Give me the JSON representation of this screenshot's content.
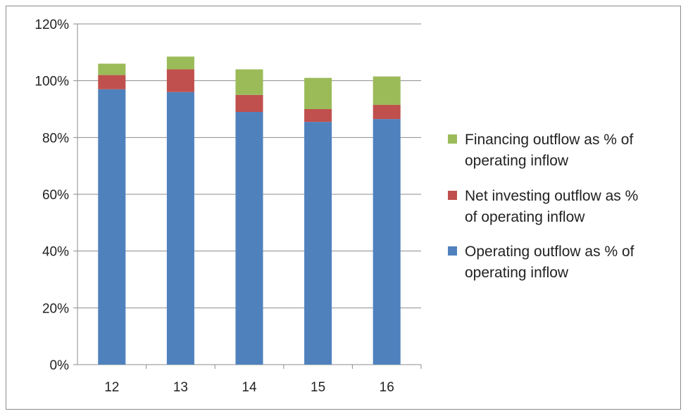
{
  "chart_data": {
    "type": "bar",
    "stacked": true,
    "categories": [
      "12",
      "13",
      "14",
      "15",
      "16"
    ],
    "series": [
      {
        "name": "Operating outflow as % of operating inflow",
        "color": "#4F81BD",
        "values": [
          97,
          96,
          89,
          85.5,
          86.5
        ]
      },
      {
        "name": "Net investing outflow as % of operating inflow",
        "color": "#C0504D",
        "values": [
          5,
          8,
          6,
          4.5,
          5
        ]
      },
      {
        "name": "Financing outflow as % of operating inflow",
        "color": "#9BBB59",
        "values": [
          4,
          4.5,
          9,
          11,
          10
        ]
      }
    ],
    "ylim": [
      0,
      120
    ],
    "yticks": [
      "0%",
      "20%",
      "40%",
      "60%",
      "80%",
      "100%",
      "120%"
    ],
    "ytick_values": [
      0,
      20,
      40,
      60,
      80,
      100,
      120
    ],
    "grid": true,
    "legend_position": "right",
    "legend_order": [
      2,
      1,
      0
    ]
  }
}
